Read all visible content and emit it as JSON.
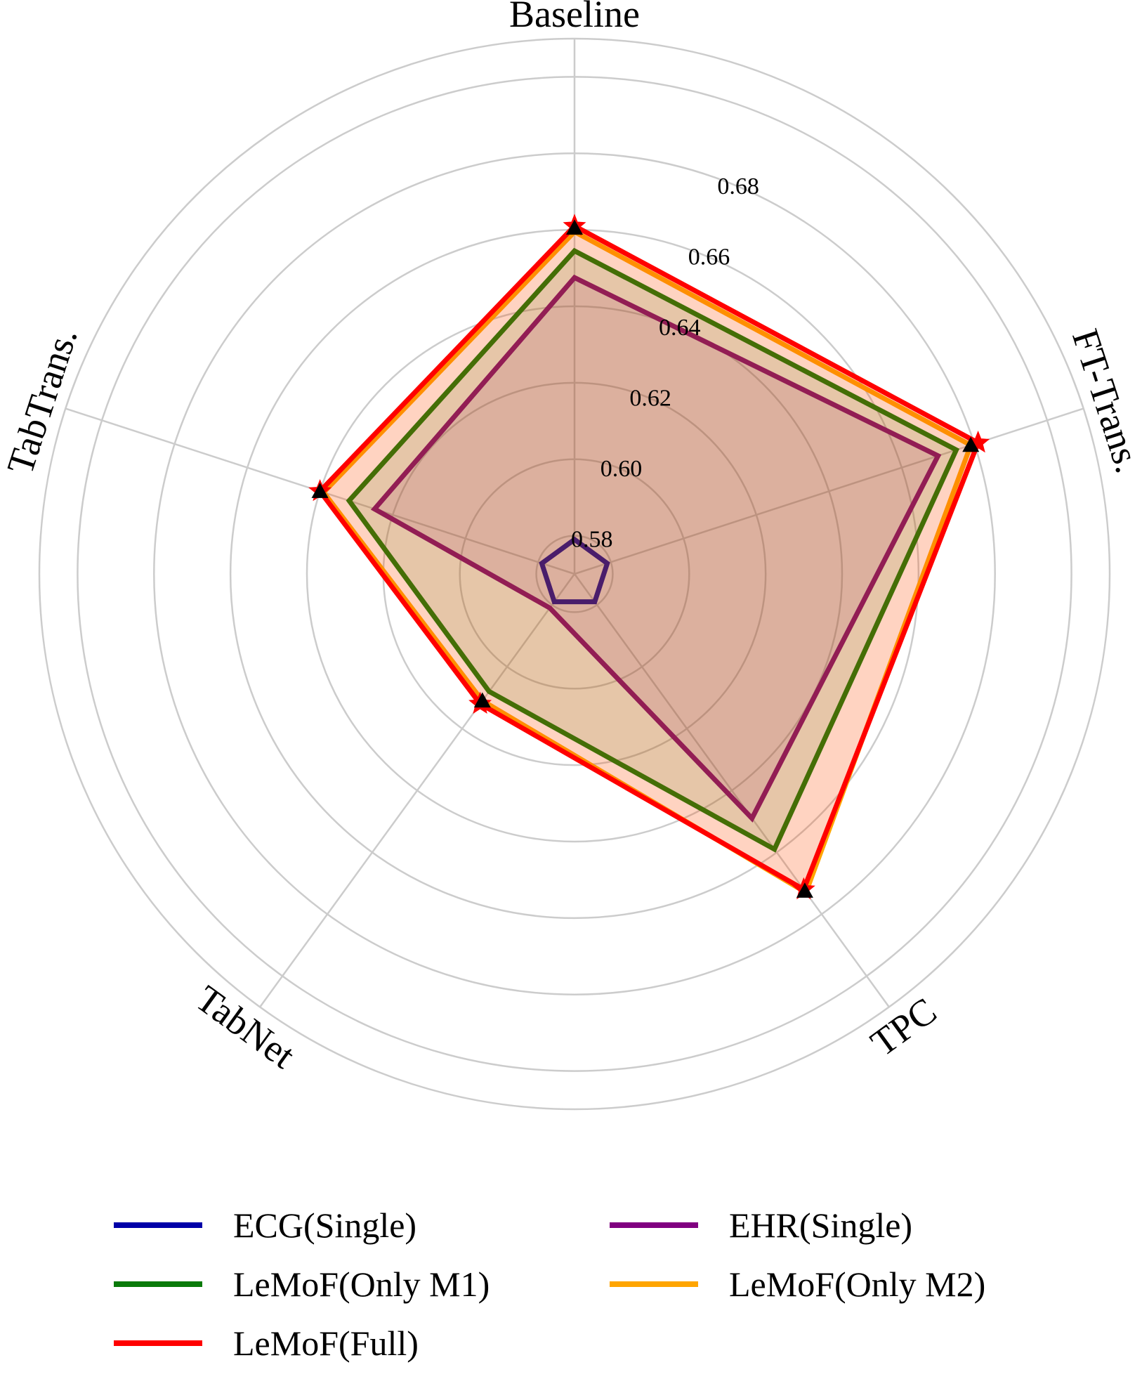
{
  "chart_data": {
    "type": "radar",
    "axes": [
      "Baseline",
      "FT-Trans.",
      "TPC",
      "TabNet",
      "TabTrans."
    ],
    "rlim": [
      0.57,
      0.71
    ],
    "rticks": [
      0.58,
      0.6,
      0.62,
      0.64,
      0.66,
      0.68
    ],
    "rtick_labels": [
      "0.58",
      "0.60",
      "0.62",
      "0.64",
      "0.66",
      "0.68"
    ],
    "grid": true,
    "legend_position": "bottom",
    "series": [
      {
        "name": "ECG(Single)",
        "color": "#0000a8",
        "values": [
          0.579,
          0.579,
          0.579,
          0.579,
          0.579
        ],
        "fill": false,
        "marker": "none"
      },
      {
        "name": "EHR(Single)",
        "color": "#800080",
        "values": [
          0.6475,
          0.67,
          0.649,
          0.581,
          0.625
        ],
        "fill": true,
        "marker": "none"
      },
      {
        "name": "LeMoF(Only M1)",
        "color": "#0a7a0a",
        "values": [
          0.6545,
          0.675,
          0.659,
          0.608,
          0.632
        ],
        "fill": true,
        "marker": "none"
      },
      {
        "name": "LeMoF(Only M2)",
        "color": "#ffa500",
        "values": [
          0.6595,
          0.679,
          0.673,
          0.611,
          0.639
        ],
        "fill": true,
        "marker": "none"
      },
      {
        "name": "LeMoF(Full)",
        "color": "#ff0000",
        "values": [
          0.661,
          0.681,
          0.672,
          0.612,
          0.64
        ],
        "fill": true,
        "marker": "star"
      },
      {
        "name": "",
        "color": "#000000",
        "values": [
          0.6605,
          0.679,
          0.6725,
          0.611,
          0.64
        ],
        "fill": false,
        "marker": "triangle"
      }
    ]
  },
  "legend": {
    "items": [
      {
        "label": "ECG(Single)",
        "color": "#0000a8"
      },
      {
        "label": "EHR(Single)",
        "color": "#800080"
      },
      {
        "label": "LeMoF(Only M1)",
        "color": "#0a7a0a"
      },
      {
        "label": "LeMoF(Only M2)",
        "color": "#ffa500"
      },
      {
        "label": "LeMoF(Full)",
        "color": "#ff0000"
      }
    ]
  }
}
